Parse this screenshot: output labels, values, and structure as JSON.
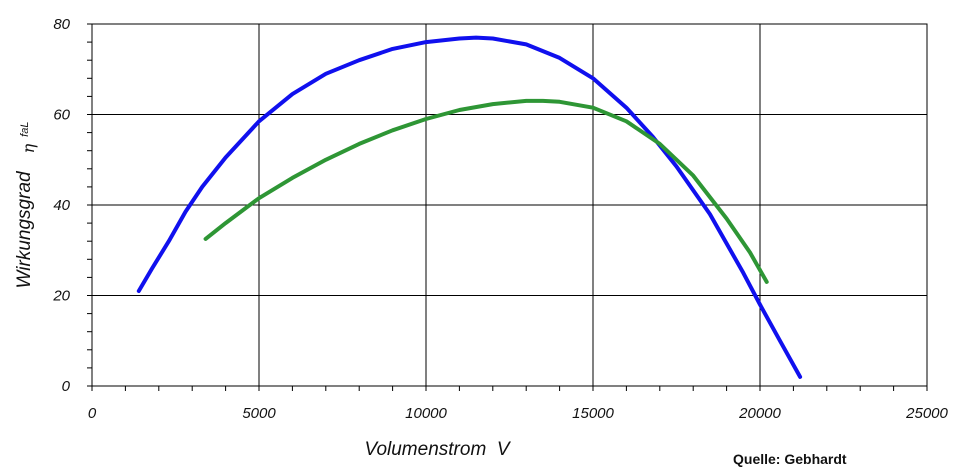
{
  "chart_data": {
    "type": "line",
    "title": "",
    "xlabel": "Volumenstrom  V",
    "ylabel": "Wirkungsgrad",
    "ylabel_symbol": "η",
    "ylabel_subscript": "faL",
    "xlim": [
      0,
      25000
    ],
    "ylim": [
      0,
      80
    ],
    "xticks": [
      "0",
      "5000",
      "10000",
      "15000",
      "20000",
      "25000"
    ],
    "yticks": [
      "0",
      "20",
      "40",
      "60",
      "80"
    ],
    "grid": true,
    "legend": "none",
    "source_note": "Quelle: Gebhardt",
    "series": [
      {
        "color": "#1010ee",
        "points": [
          [
            1400,
            21
          ],
          [
            1800,
            26
          ],
          [
            2300,
            32
          ],
          [
            2800,
            38.5
          ],
          [
            3300,
            44
          ],
          [
            4000,
            50.5
          ],
          [
            5000,
            58.5
          ],
          [
            6000,
            64.5
          ],
          [
            7000,
            69
          ],
          [
            8000,
            72
          ],
          [
            9000,
            74.5
          ],
          [
            10000,
            76
          ],
          [
            11000,
            76.8
          ],
          [
            11500,
            77
          ],
          [
            12000,
            76.8
          ],
          [
            13000,
            75.5
          ],
          [
            14000,
            72.5
          ],
          [
            15000,
            68
          ],
          [
            16000,
            61.5
          ],
          [
            16800,
            55
          ],
          [
            17500,
            48.5
          ],
          [
            18500,
            38
          ],
          [
            19500,
            25
          ],
          [
            20000,
            18
          ],
          [
            20600,
            10
          ],
          [
            21200,
            2
          ]
        ]
      },
      {
        "color": "#2e9635",
        "points": [
          [
            3400,
            32.5
          ],
          [
            4000,
            36
          ],
          [
            5000,
            41.5
          ],
          [
            6000,
            46
          ],
          [
            7000,
            50
          ],
          [
            8000,
            53.5
          ],
          [
            9000,
            56.5
          ],
          [
            10000,
            59
          ],
          [
            11000,
            61
          ],
          [
            12000,
            62.3
          ],
          [
            13000,
            63
          ],
          [
            13500,
            63
          ],
          [
            14000,
            62.8
          ],
          [
            15000,
            61.5
          ],
          [
            16000,
            58.5
          ],
          [
            17000,
            53.5
          ],
          [
            18000,
            46.5
          ],
          [
            19000,
            37
          ],
          [
            19700,
            29.5
          ],
          [
            20200,
            23
          ]
        ]
      }
    ]
  }
}
